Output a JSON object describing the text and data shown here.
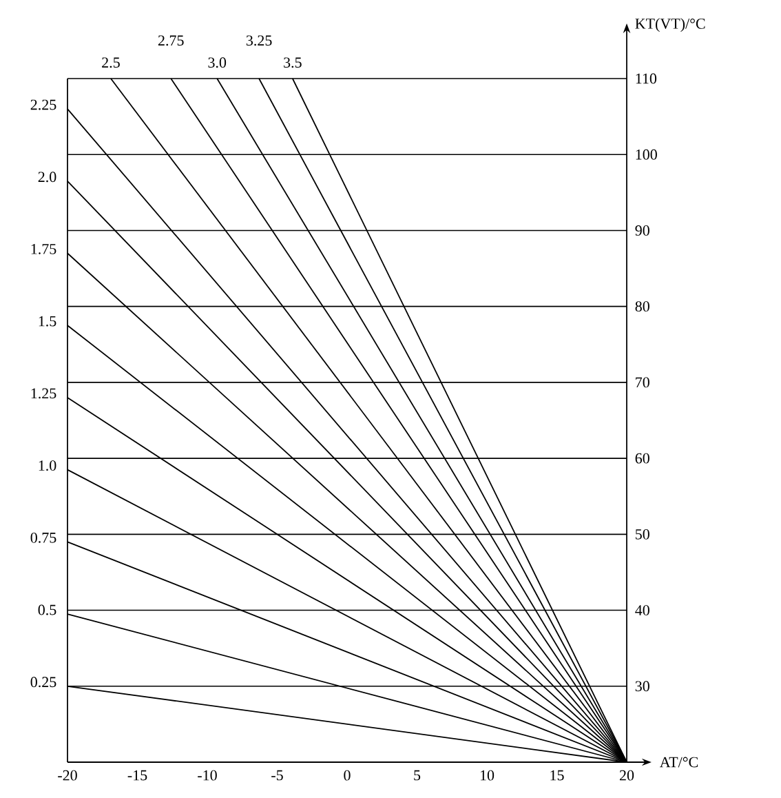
{
  "chart_data": {
    "type": "line",
    "xlabel": "AT/°C",
    "ylabel": "KT(VT)/°C",
    "xlim": [
      -20,
      20
    ],
    "ylim": [
      20,
      110
    ],
    "xticks": [
      -20,
      -15,
      -10,
      -5,
      0,
      5,
      10,
      15,
      20
    ],
    "yticks": [
      30,
      40,
      50,
      60,
      70,
      80,
      90,
      100,
      110
    ],
    "grid": "y",
    "marker": "none",
    "line_style": "solid",
    "series": [
      {
        "name": "0.25",
        "color": "#000000",
        "x": [
          -20,
          20
        ],
        "values": [
          30,
          20
        ]
      },
      {
        "name": "0.5",
        "color": "#000000",
        "x": [
          -20,
          20
        ],
        "values": [
          39.5,
          20
        ]
      },
      {
        "name": "0.75",
        "color": "#000000",
        "x": [
          -20,
          20
        ],
        "values": [
          49,
          20
        ]
      },
      {
        "name": "1.0",
        "color": "#000000",
        "x": [
          -20,
          20
        ],
        "values": [
          58.5,
          20
        ]
      },
      {
        "name": "1.25",
        "color": "#000000",
        "x": [
          -20,
          20
        ],
        "values": [
          68,
          20
        ]
      },
      {
        "name": "1.5",
        "color": "#000000",
        "x": [
          -20,
          20
        ],
        "values": [
          77.5,
          20
        ]
      },
      {
        "name": "1.75",
        "color": "#000000",
        "x": [
          -20,
          20
        ],
        "values": [
          87,
          20
        ]
      },
      {
        "name": "2.0",
        "color": "#000000",
        "x": [
          -20,
          20
        ],
        "values": [
          96.5,
          20
        ]
      },
      {
        "name": "2.25",
        "color": "#000000",
        "x": [
          -20,
          20
        ],
        "values": [
          106,
          20
        ]
      },
      {
        "name": "2.5",
        "color": "#000000",
        "x": [
          -16.9,
          20
        ],
        "values": [
          110,
          20
        ]
      },
      {
        "name": "2.75",
        "color": "#000000",
        "x": [
          -12.6,
          20
        ],
        "values": [
          110,
          20
        ]
      },
      {
        "name": "3.0",
        "color": "#000000",
        "x": [
          -9.3,
          20
        ],
        "values": [
          110,
          20
        ]
      },
      {
        "name": "3.25",
        "color": "#000000",
        "x": [
          -6.3,
          20
        ],
        "values": [
          110,
          20
        ]
      },
      {
        "name": "3.5",
        "color": "#000000",
        "x": [
          -3.9,
          20
        ],
        "values": [
          110,
          20
        ]
      }
    ]
  }
}
